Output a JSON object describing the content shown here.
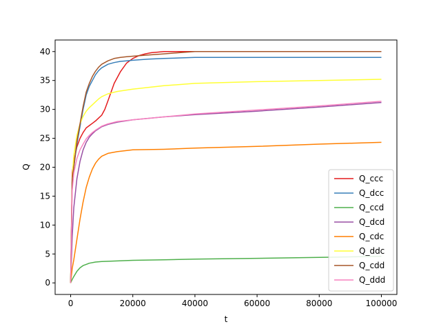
{
  "chart_data": {
    "type": "line",
    "title": "",
    "xlabel": "t",
    "ylabel": "Q",
    "xlim": [
      -5000,
      105000
    ],
    "ylim": [
      -2,
      42
    ],
    "xticks": [
      0,
      20000,
      40000,
      60000,
      80000,
      100000
    ],
    "xtick_labels": [
      "0",
      "20000",
      "40000",
      "60000",
      "80000",
      "100000"
    ],
    "yticks": [
      0,
      5,
      10,
      15,
      20,
      25,
      30,
      35,
      40
    ],
    "ytick_labels": [
      "0",
      "5",
      "10",
      "15",
      "20",
      "25",
      "30",
      "35",
      "40"
    ],
    "grid": false,
    "legend_position": "lower-right",
    "series": [
      {
        "name": "Q_ccc",
        "color": "#e41a1c",
        "x": [
          0,
          500,
          1000,
          2000,
          3000,
          4000,
          5000,
          6000,
          7000,
          8000,
          9000,
          10000,
          11000,
          12000,
          13000,
          14000,
          16000,
          18000,
          20000,
          22000,
          24000,
          26000,
          28000,
          30000,
          35000,
          40000,
          60000,
          80000,
          100000
        ],
        "y": [
          0,
          19,
          21,
          23.5,
          25,
          26,
          26.8,
          27.2,
          27.6,
          28,
          28.5,
          29,
          30,
          31.5,
          33,
          34.5,
          36.5,
          38,
          38.8,
          39.3,
          39.6,
          39.8,
          39.9,
          40,
          40,
          40,
          40,
          40,
          40
        ]
      },
      {
        "name": "Q_dcc",
        "color": "#377eb8",
        "x": [
          0,
          500,
          1000,
          2000,
          3000,
          4000,
          5000,
          6000,
          7000,
          8000,
          9000,
          10000,
          12000,
          14000,
          16000,
          18000,
          20000,
          25000,
          30000,
          35000,
          40000,
          60000,
          80000,
          100000
        ],
        "y": [
          0,
          18,
          20,
          24,
          27,
          30,
          32.5,
          34,
          35,
          36,
          36.7,
          37.2,
          37.8,
          38.1,
          38.3,
          38.4,
          38.5,
          38.7,
          38.8,
          38.9,
          39,
          39,
          39,
          39
        ]
      },
      {
        "name": "Q_ccd",
        "color": "#4daf4a",
        "x": [
          0,
          500,
          1000,
          2000,
          3000,
          4000,
          5000,
          6000,
          8000,
          10000,
          15000,
          20000,
          30000,
          40000,
          60000,
          80000,
          100000
        ],
        "y": [
          0,
          0.6,
          1.1,
          2,
          2.6,
          3,
          3.2,
          3.4,
          3.6,
          3.7,
          3.8,
          3.9,
          4,
          4.1,
          4.25,
          4.4,
          4.6
        ]
      },
      {
        "name": "Q_dcd",
        "color": "#984ea3",
        "x": [
          0,
          500,
          1000,
          2000,
          3000,
          4000,
          5000,
          6000,
          7000,
          8000,
          10000,
          12000,
          15000,
          20000,
          30000,
          40000,
          60000,
          80000,
          100000
        ],
        "y": [
          0,
          8,
          13,
          18,
          21,
          23,
          24.3,
          25.2,
          25.8,
          26.3,
          27,
          27.4,
          27.8,
          28.2,
          28.7,
          29.1,
          29.7,
          30.4,
          31.2
        ]
      },
      {
        "name": "Q_cdc",
        "color": "#ff7f00",
        "x": [
          0,
          500,
          1000,
          2000,
          3000,
          4000,
          5000,
          6000,
          7000,
          8000,
          9000,
          10000,
          12000,
          15000,
          20000,
          30000,
          40000,
          60000,
          80000,
          100000
        ],
        "y": [
          0,
          2.5,
          4,
          7.5,
          11,
          14,
          16.5,
          18.3,
          19.7,
          20.7,
          21.4,
          21.9,
          22.4,
          22.7,
          23,
          23.1,
          23.3,
          23.6,
          24,
          24.3
        ]
      },
      {
        "name": "Q_ddc",
        "color": "#ffff33",
        "x": [
          0,
          500,
          1000,
          2000,
          3000,
          4000,
          5000,
          6000,
          7000,
          8000,
          9000,
          10000,
          12000,
          15000,
          20000,
          25000,
          30000,
          40000,
          60000,
          80000,
          100000
        ],
        "y": [
          0,
          18,
          22,
          25.5,
          27.5,
          28.8,
          29.7,
          30.3,
          30.8,
          31.3,
          31.8,
          32.2,
          32.7,
          33.1,
          33.5,
          33.8,
          34.1,
          34.5,
          34.8,
          35,
          35.2
        ]
      },
      {
        "name": "Q_cdd",
        "color": "#a65628",
        "x": [
          0,
          500,
          1000,
          2000,
          3000,
          4000,
          5000,
          6000,
          7000,
          8000,
          9000,
          10000,
          12000,
          14000,
          16000,
          18000,
          20000,
          25000,
          30000,
          35000,
          40000,
          60000,
          80000,
          100000
        ],
        "y": [
          0,
          18,
          20,
          24.5,
          27.5,
          30.5,
          33,
          34.5,
          35.7,
          36.6,
          37.3,
          37.8,
          38.4,
          38.8,
          39,
          39.1,
          39.2,
          39.4,
          39.6,
          39.8,
          40,
          40,
          40,
          40
        ]
      },
      {
        "name": "Q_ddd",
        "color": "#f781bf",
        "x": [
          0,
          500,
          1000,
          2000,
          3000,
          4000,
          5000,
          6000,
          7000,
          8000,
          10000,
          12000,
          15000,
          20000,
          30000,
          40000,
          60000,
          80000,
          100000
        ],
        "y": [
          0,
          16,
          19,
          21.5,
          23,
          24,
          24.9,
          25.5,
          26,
          26.4,
          27.1,
          27.5,
          27.9,
          28.2,
          28.7,
          29.2,
          29.9,
          30.6,
          31.4
        ]
      }
    ]
  }
}
